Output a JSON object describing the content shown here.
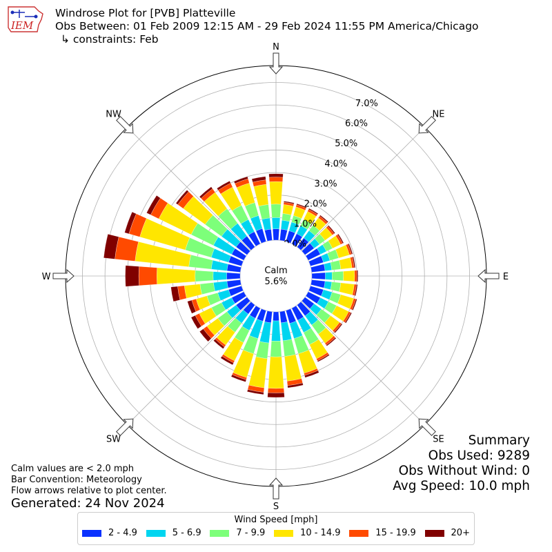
{
  "header": {
    "title": "Windrose Plot for [PVB] Platteville",
    "period": "Obs Between: 01 Feb 2009 12:15 AM - 29 Feb 2024 11:55 PM America/Chicago",
    "constraints": "↳ constraints: Feb"
  },
  "logo": {
    "text": "IEM"
  },
  "notes": {
    "line1": "Calm values are < 2.0 mph",
    "line2": "Bar Convention: Meteorology",
    "line3": "Flow arrows relative to plot center.",
    "generated": "Generated: 24 Nov 2024"
  },
  "summary": {
    "title": "Summary",
    "obs_used": "Obs Used: 9289",
    "obs_without_wind": "Obs Without Wind: 0",
    "avg_speed": "Avg Speed: 10.0 mph"
  },
  "legend": {
    "title": "Wind Speed [mph]",
    "items": [
      {
        "label": "2 - 4.9",
        "color": "#0a31ff"
      },
      {
        "label": "5 - 6.9",
        "color": "#00d5f0"
      },
      {
        "label": "7 - 9.9",
        "color": "#7dff7a"
      },
      {
        "label": "10 - 14.9",
        "color": "#ffe600"
      },
      {
        "label": "15 - 19.9",
        "color": "#ff4a00"
      },
      {
        "label": "20+",
        "color": "#800000"
      }
    ]
  },
  "chart_data": {
    "type": "windrose",
    "calm": {
      "label": "Calm",
      "value": "5.6%"
    },
    "radial_ticks": [
      "0.0%",
      "1.0%",
      "2.0%",
      "3.0%",
      "4.0%",
      "5.0%",
      "6.0%",
      "7.0%"
    ],
    "radial_max": 7.75,
    "compass": [
      "N",
      "NE",
      "E",
      "SE",
      "S",
      "SW",
      "W",
      "NW"
    ],
    "directions_deg": [
      0,
      10,
      20,
      30,
      40,
      50,
      60,
      70,
      80,
      90,
      100,
      110,
      120,
      130,
      140,
      150,
      160,
      170,
      180,
      190,
      200,
      210,
      220,
      230,
      240,
      250,
      260,
      270,
      280,
      290,
      300,
      310,
      320,
      330,
      340,
      350
    ],
    "speed_bins": [
      "2 - 4.9",
      "5 - 6.9",
      "7 - 9.9",
      "10 - 14.9",
      "15 - 19.9",
      "20+"
    ],
    "series": [
      {
        "name": "2 - 4.9",
        "values": [
          0.5,
          0.5,
          0.5,
          0.5,
          0.5,
          0.5,
          0.6,
          0.6,
          0.6,
          0.6,
          0.6,
          0.6,
          0.6,
          0.5,
          0.6,
          0.6,
          0.6,
          0.5,
          0.4,
          0.5,
          0.5,
          0.5,
          0.5,
          0.6,
          0.6,
          0.6,
          0.6,
          0.6,
          0.6,
          0.6,
          0.6,
          0.6,
          0.6,
          0.6,
          0.6,
          0.5
        ]
      },
      {
        "name": "5 - 6.9",
        "values": [
          0.5,
          0.4,
          0.4,
          0.4,
          0.4,
          0.3,
          0.3,
          0.3,
          0.3,
          0.3,
          0.3,
          0.4,
          0.4,
          0.4,
          0.5,
          0.6,
          0.7,
          0.8,
          0.9,
          0.9,
          0.8,
          0.6,
          0.5,
          0.5,
          0.5,
          0.5,
          0.6,
          0.6,
          0.7,
          0.8,
          0.9,
          0.8,
          0.7,
          0.6,
          0.6,
          0.5
        ]
      },
      {
        "name": "7 - 9.9",
        "values": [
          0.6,
          0.3,
          0.3,
          0.3,
          0.3,
          0.3,
          0.3,
          0.4,
          0.4,
          0.5,
          0.4,
          0.4,
          0.4,
          0.5,
          0.5,
          0.6,
          0.7,
          0.7,
          0.7,
          0.7,
          0.7,
          0.6,
          0.5,
          0.5,
          0.5,
          0.5,
          0.6,
          0.8,
          1.0,
          1.2,
          1.1,
          0.9,
          0.8,
          0.7,
          0.6,
          0.6
        ]
      },
      {
        "name": "10 - 14.9",
        "values": [
          1.0,
          0.4,
          0.4,
          0.4,
          0.4,
          0.4,
          0.4,
          0.5,
          0.5,
          0.5,
          0.6,
          0.6,
          0.6,
          0.5,
          0.5,
          0.7,
          0.9,
          1.1,
          1.4,
          1.3,
          1.1,
          0.9,
          0.7,
          0.6,
          0.6,
          0.5,
          0.7,
          1.7,
          2.4,
          2.1,
          1.6,
          1.2,
          0.9,
          0.9,
          0.9,
          0.9
        ]
      },
      {
        "name": "15 - 19.9",
        "values": [
          0.2,
          0.1,
          0.1,
          0.1,
          0.1,
          0.1,
          0.1,
          0.1,
          0.1,
          0.1,
          0.1,
          0.1,
          0.1,
          0.1,
          0.1,
          0.1,
          0.1,
          0.2,
          0.2,
          0.2,
          0.1,
          0.1,
          0.1,
          0.2,
          0.2,
          0.2,
          0.3,
          0.8,
          0.9,
          0.5,
          0.4,
          0.3,
          0.2,
          0.2,
          0.2,
          0.2
        ]
      },
      {
        "name": "20+",
        "values": [
          0.15,
          0.05,
          0.05,
          0.05,
          0.05,
          0.05,
          0.05,
          0.05,
          0.05,
          0.05,
          0.05,
          0.05,
          0.05,
          0.05,
          0.05,
          0.05,
          0.1,
          0.1,
          0.2,
          0.1,
          0.1,
          0.1,
          0.1,
          0.2,
          0.2,
          0.2,
          0.3,
          0.6,
          0.5,
          0.2,
          0.2,
          0.1,
          0.1,
          0.1,
          0.1,
          0.15
        ]
      }
    ]
  }
}
